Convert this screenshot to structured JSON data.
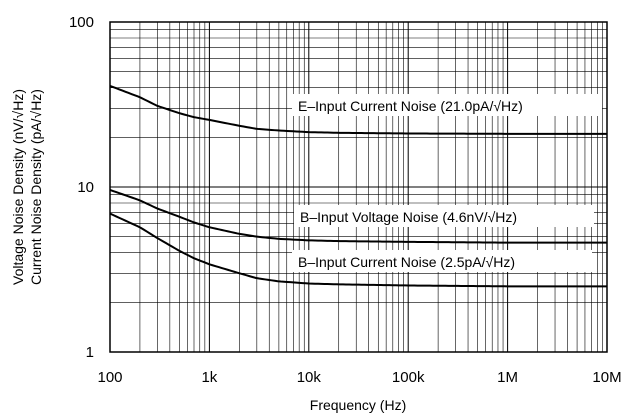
{
  "chart_data": {
    "type": "line",
    "title": "",
    "xlabel": "Frequency (Hz)",
    "ylabel": [
      "Voltage Noise Density (nV/√Hz)",
      "Current Noise Density (pA/√Hz)"
    ],
    "x_scale": "log",
    "y_scale": "log",
    "xlim": [
      100,
      10000000
    ],
    "ylim": [
      1,
      100
    ],
    "grid": true,
    "x_ticks": [
      {
        "value": 100,
        "label": "100"
      },
      {
        "value": 1000,
        "label": "1k"
      },
      {
        "value": 10000,
        "label": "10k"
      },
      {
        "value": 100000,
        "label": "100k"
      },
      {
        "value": 1000000,
        "label": "1M"
      },
      {
        "value": 10000000,
        "label": "10M"
      }
    ],
    "y_ticks": [
      {
        "value": 1,
        "label": "1"
      },
      {
        "value": 10,
        "label": "10"
      },
      {
        "value": 100,
        "label": "100"
      }
    ],
    "series": [
      {
        "name": "E–Input Current Noise (21.0pA/√Hz)",
        "x": [
          100,
          200,
          300,
          500,
          700,
          1000,
          2000,
          3000,
          5000,
          10000,
          20000,
          100000,
          1000000,
          10000000
        ],
        "y": [
          41,
          35,
          31,
          28,
          26.5,
          25.5,
          23.5,
          22.5,
          22,
          21.5,
          21.3,
          21.1,
          21.0,
          21.0
        ]
      },
      {
        "name": "B–Input Voltage Noise (4.6nV/√Hz)",
        "x": [
          100,
          200,
          300,
          500,
          700,
          1000,
          2000,
          3000,
          5000,
          10000,
          20000,
          100000,
          1000000,
          10000000
        ],
        "y": [
          9.6,
          8.3,
          7.4,
          6.6,
          6.1,
          5.7,
          5.2,
          5.0,
          4.85,
          4.75,
          4.7,
          4.65,
          4.6,
          4.6
        ]
      },
      {
        "name": "B–Input Current Noise (2.5pA/√Hz)",
        "x": [
          100,
          200,
          300,
          500,
          700,
          1000,
          2000,
          3000,
          5000,
          10000,
          20000,
          100000,
          1000000,
          10000000
        ],
        "y": [
          6.9,
          5.7,
          4.9,
          4.1,
          3.7,
          3.4,
          3.0,
          2.8,
          2.68,
          2.6,
          2.57,
          2.53,
          2.5,
          2.5
        ]
      }
    ]
  }
}
